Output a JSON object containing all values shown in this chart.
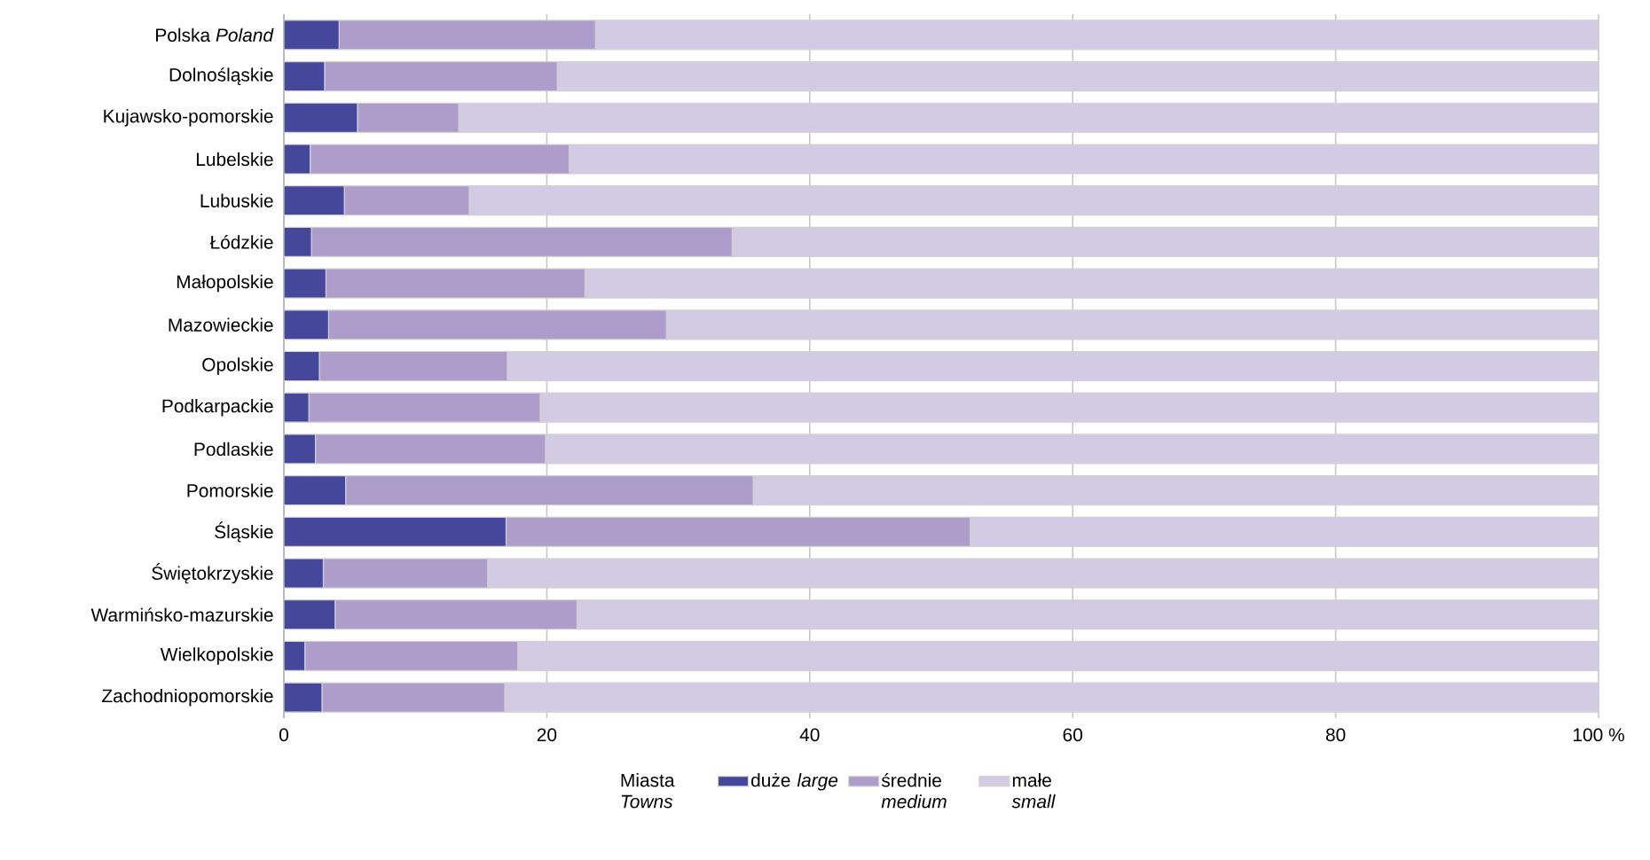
{
  "chart_data": {
    "type": "bar",
    "orientation": "horizontal",
    "stacked": true,
    "categories": [
      "Polska *Poland*",
      "Dolnośląskie",
      "Kujawsko-pomorskie",
      "Lubelskie",
      "Lubuskie",
      "Łódzkie",
      "Małopolskie",
      "Mazowieckie",
      "Opolskie",
      "Podkarpackie",
      "Podlaskie",
      "Pomorskie",
      "Śląskie",
      "Świętokrzyskie",
      "Warmińsko-mazurskie",
      "Wielkopolskie",
      "Zachodniopomorskie"
    ],
    "series": [
      {
        "name": "duże *large*",
        "color": "#45479a",
        "values": [
          4.2,
          3.1,
          5.6,
          2.0,
          4.6,
          2.1,
          3.2,
          3.4,
          2.7,
          1.9,
          2.4,
          4.7,
          16.9,
          3.0,
          3.9,
          1.6,
          2.9
        ]
      },
      {
        "name": "średnie *medium*",
        "color": "#ae9dca",
        "values": [
          19.5,
          17.7,
          7.7,
          19.7,
          9.5,
          32.0,
          19.7,
          25.7,
          14.3,
          17.6,
          17.5,
          31.0,
          35.3,
          12.5,
          18.4,
          16.2,
          13.9
        ]
      },
      {
        "name": "małe *small*",
        "color": "#d3cae3",
        "values": [
          76.3,
          79.2,
          86.7,
          78.3,
          85.9,
          65.9,
          77.1,
          70.9,
          83.0,
          80.5,
          80.1,
          64.3,
          47.8,
          84.5,
          77.7,
          82.2,
          83.2
        ]
      }
    ],
    "xlim": [
      0,
      100
    ],
    "xticks": [
      0,
      20,
      40,
      60,
      80,
      {
        "value": 100,
        "label": "100 %"
      }
    ],
    "legend_title": "Miasta *Towns*",
    "legend": "bottom",
    "grid": "x"
  }
}
